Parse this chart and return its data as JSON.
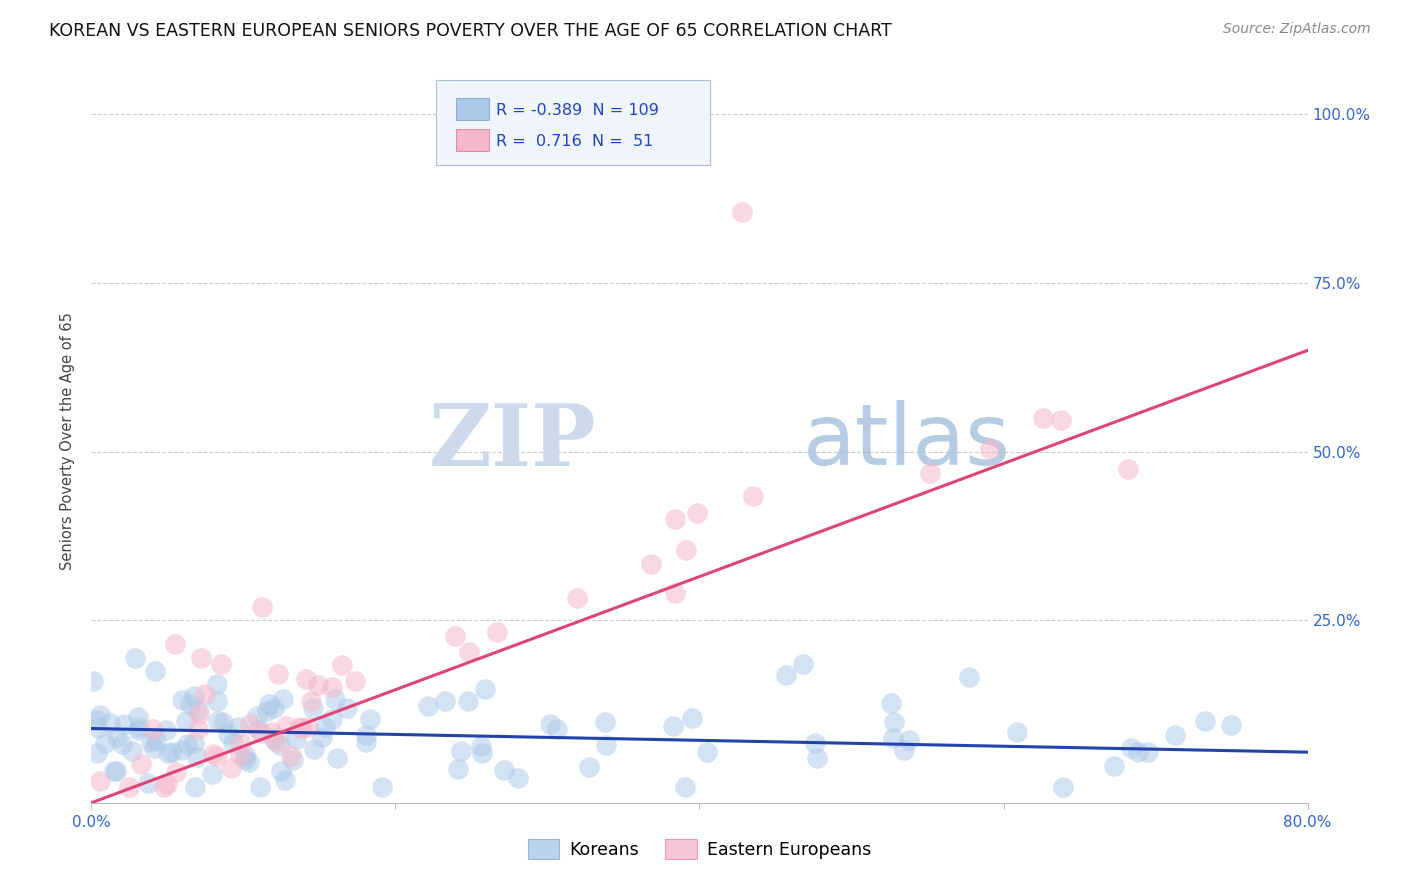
{
  "title": "KOREAN VS EASTERN EUROPEAN SENIORS POVERTY OVER THE AGE OF 65 CORRELATION CHART",
  "source": "Source: ZipAtlas.com",
  "ylabel": "Seniors Poverty Over the Age of 65",
  "xlim": [
    0.0,
    0.8
  ],
  "ylim": [
    -0.02,
    1.05
  ],
  "korean_R": -0.389,
  "korean_N": 109,
  "eastern_R": 0.716,
  "eastern_N": 51,
  "korean_color": "#aac8e8",
  "eastern_color": "#f5b8cb",
  "korean_line_color": "#2244aa",
  "eastern_line_color": "#dd4477",
  "watermark_zip": "ZIP",
  "watermark_atlas": "atlas",
  "background_color": "#ffffff",
  "title_fontsize": 12.5,
  "axis_label_fontsize": 10.5,
  "tick_fontsize": 11,
  "source_fontsize": 10
}
